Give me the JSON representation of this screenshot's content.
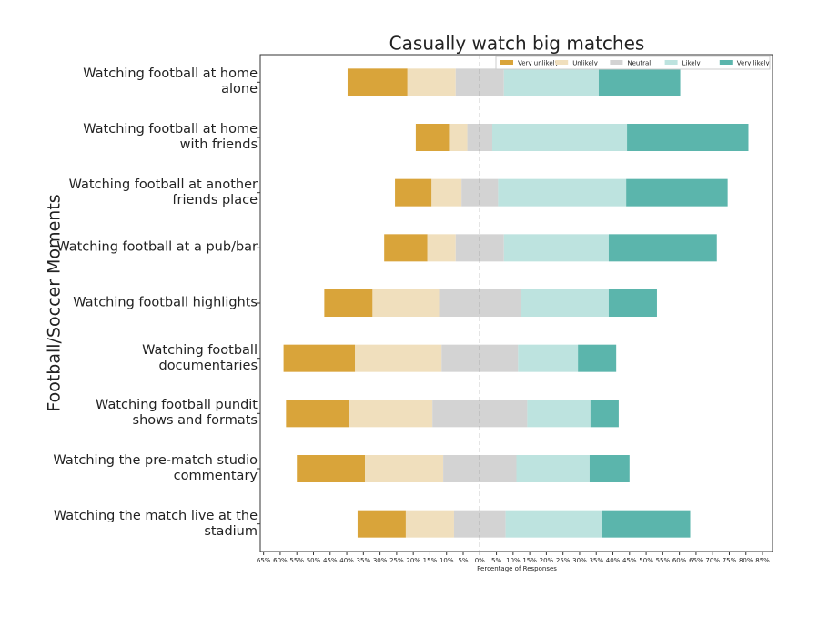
{
  "chart_data": {
    "type": "diverging_bar",
    "title": "Casually watch big matches",
    "x_label": "Percentage of Responses",
    "y_label": "Football/Soccer Moments",
    "categories": [
      "Watching football at home alone",
      "Watching football at home with friends",
      "Watching football at another friends place",
      "Watching football at a pub/bar",
      "Watching football highlights",
      "Watching football documentaries",
      "Watching football pundit shows and formats",
      "Watching the pre-match studio commentary",
      "Watching the match live at the stadium"
    ],
    "series": [
      {
        "name": "Very unlikely",
        "color": "#d9a43a",
        "values": [
          18,
          10,
          11,
          13,
          14.5,
          21.5,
          19,
          20.5,
          14.5
        ]
      },
      {
        "name": "Unlikely",
        "color": "#f0dfbd",
        "values": [
          14.5,
          5.5,
          9,
          8.5,
          20,
          26,
          25,
          23.5,
          14.5
        ]
      },
      {
        "name": "Neutral",
        "color": "#d3d3d3",
        "values": [
          14.5,
          7.5,
          11,
          14.5,
          24.5,
          23,
          28.5,
          22,
          15.5
        ]
      },
      {
        "name": "Likely",
        "color": "#bde3df",
        "values": [
          28.5,
          40.5,
          38.5,
          31.5,
          26.5,
          18,
          19,
          22,
          29
        ]
      },
      {
        "name": "Very likely",
        "color": "#5bb5ac",
        "values": [
          24.5,
          36.5,
          30.5,
          32.5,
          14.5,
          11.5,
          8.5,
          12,
          26.5
        ]
      }
    ],
    "neutral_series": 2,
    "xlim": [
      -66,
      88
    ],
    "xticks": [
      {
        "value": -65,
        "label": "65%"
      },
      {
        "value": -60,
        "label": "60%"
      },
      {
        "value": -55,
        "label": "55%"
      },
      {
        "value": -50,
        "label": "50%"
      },
      {
        "value": -45,
        "label": "45%"
      },
      {
        "value": -40,
        "label": "40%"
      },
      {
        "value": -35,
        "label": "35%"
      },
      {
        "value": -30,
        "label": "30%"
      },
      {
        "value": -25,
        "label": "25%"
      },
      {
        "value": -20,
        "label": "20%"
      },
      {
        "value": -15,
        "label": "15%"
      },
      {
        "value": -10,
        "label": "10%"
      },
      {
        "value": -5,
        "label": "5%"
      },
      {
        "value": 0,
        "label": "0%"
      },
      {
        "value": 5,
        "label": "5%"
      },
      {
        "value": 10,
        "label": "10%"
      },
      {
        "value": 15,
        "label": "15%"
      },
      {
        "value": 20,
        "label": "20%"
      },
      {
        "value": 25,
        "label": "25%"
      },
      {
        "value": 30,
        "label": "30%"
      },
      {
        "value": 35,
        "label": "35%"
      },
      {
        "value": 40,
        "label": "40%"
      },
      {
        "value": 45,
        "label": "45%"
      },
      {
        "value": 50,
        "label": "50%"
      },
      {
        "value": 55,
        "label": "55%"
      },
      {
        "value": 60,
        "label": "60%"
      },
      {
        "value": 65,
        "label": "65%"
      },
      {
        "value": 70,
        "label": "70%"
      },
      {
        "value": 75,
        "label": "75%"
      },
      {
        "value": 80,
        "label": "80%"
      },
      {
        "value": 85,
        "label": "85%"
      }
    ],
    "legend": "upper right"
  }
}
